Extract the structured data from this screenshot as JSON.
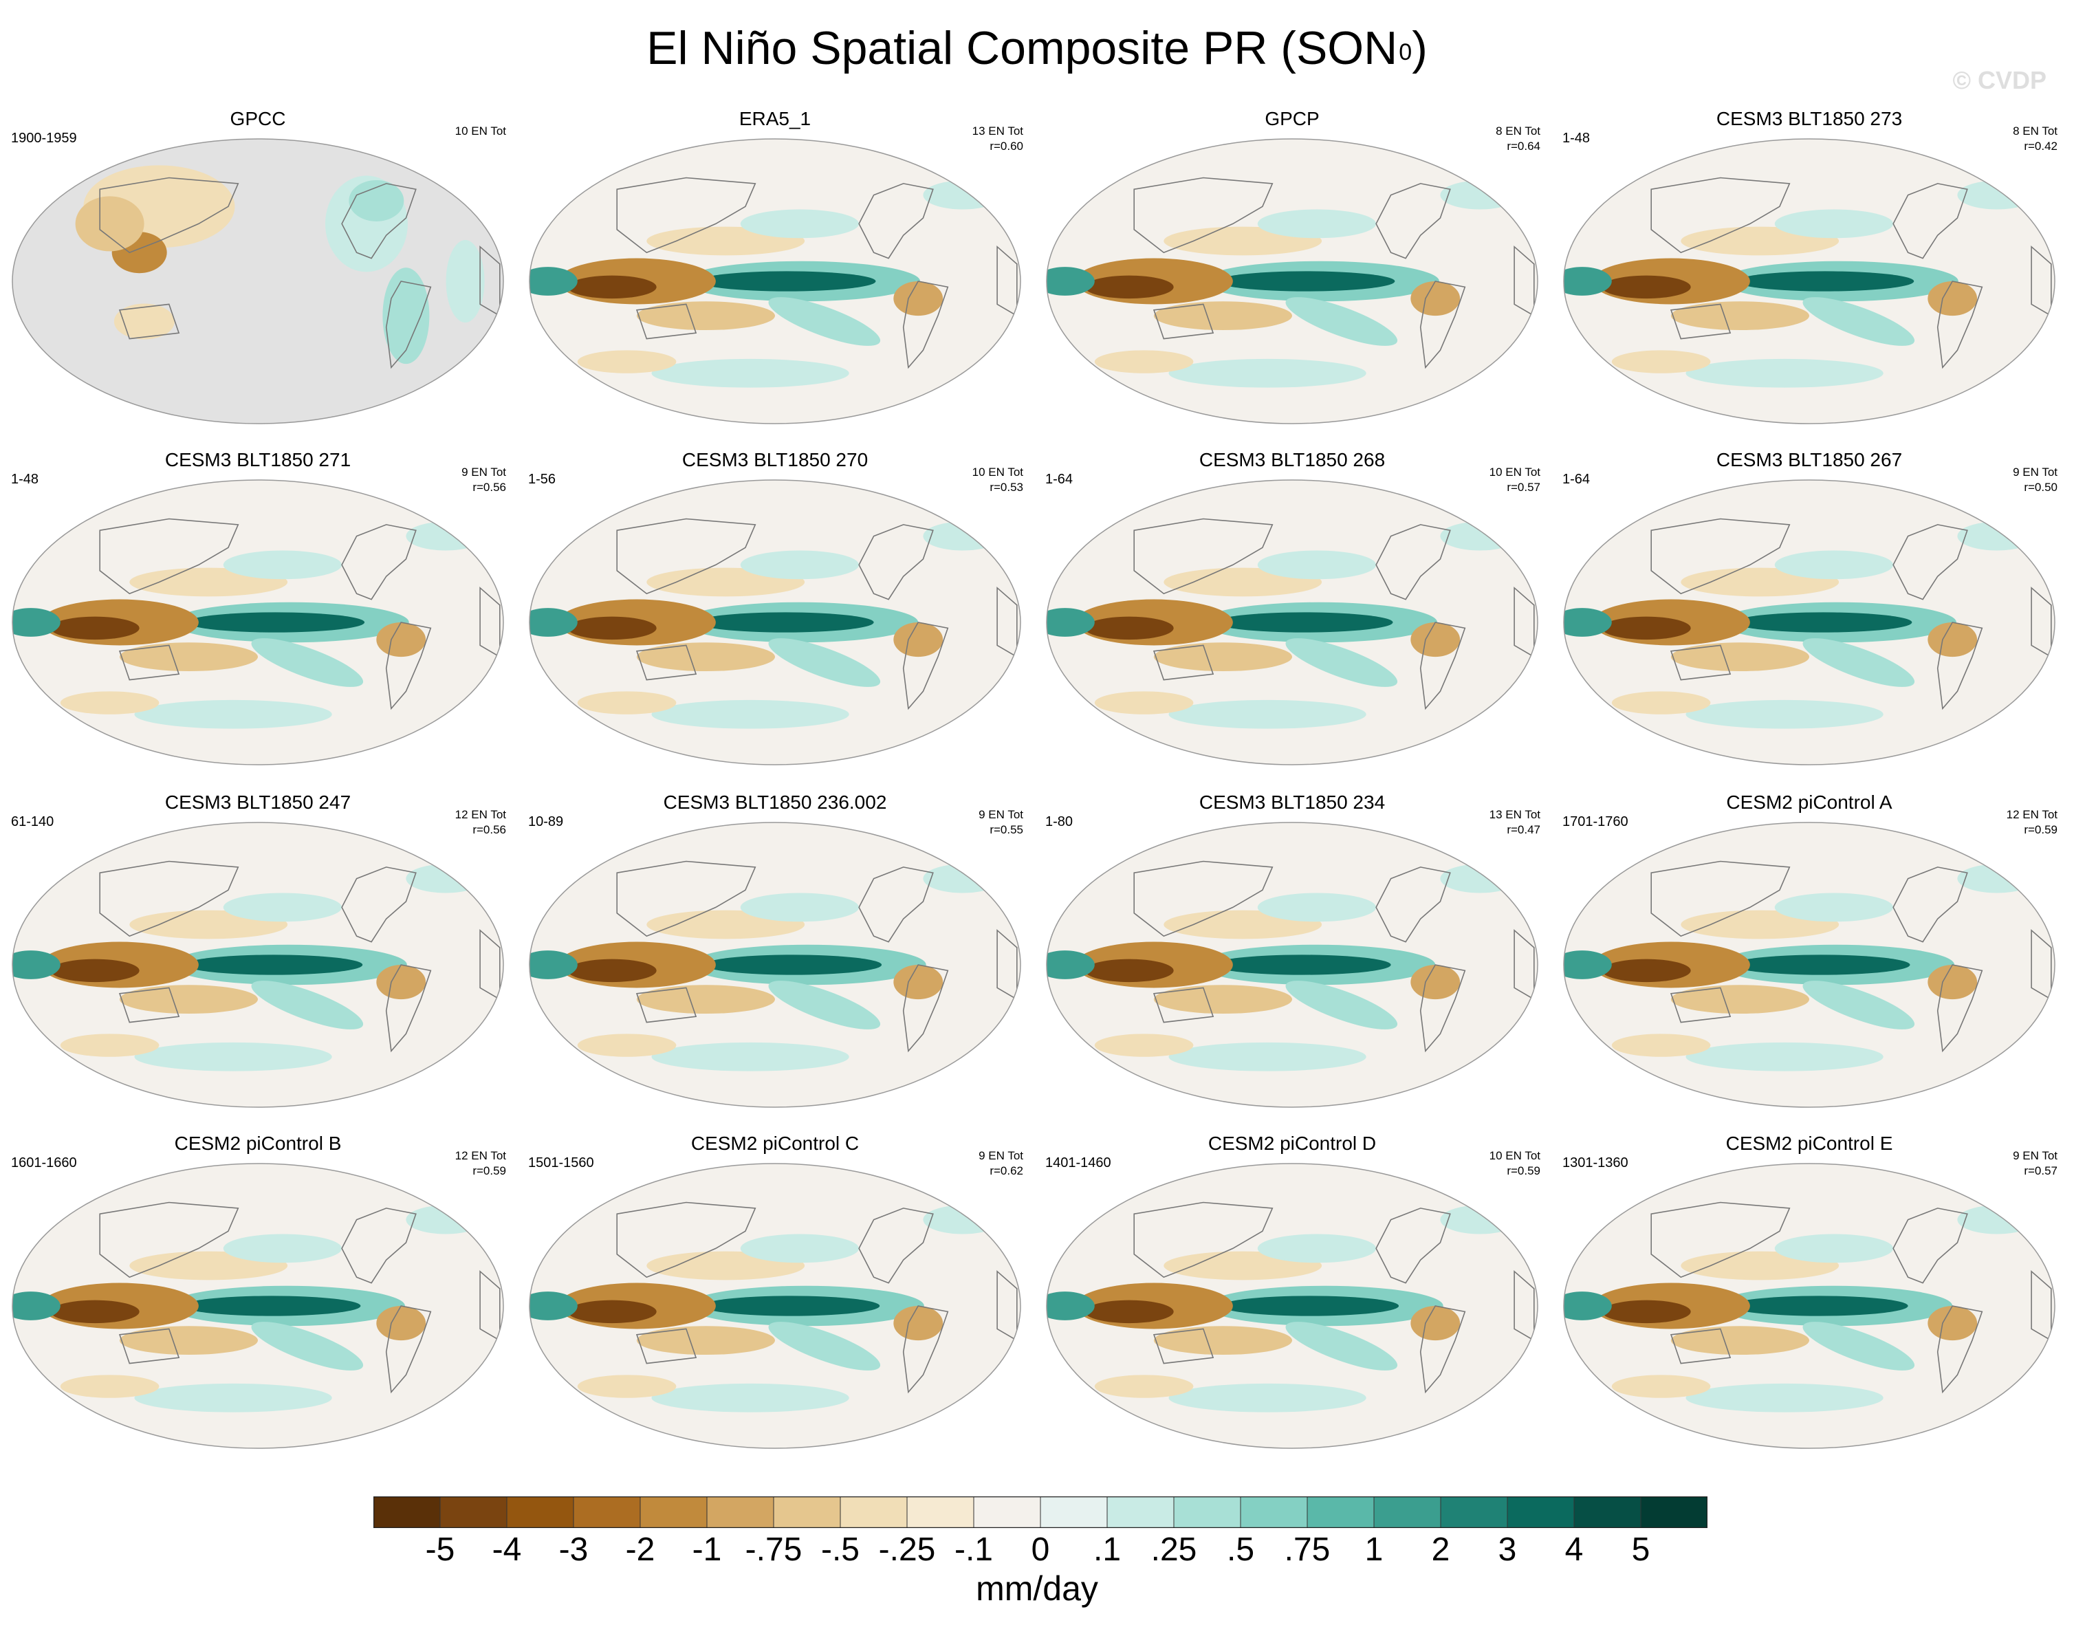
{
  "figure": {
    "title_main": "El Niño Spatial Composite PR (SON",
    "title_sup": "0",
    "title_close": ")",
    "watermark": "© CVDP"
  },
  "chart_data": {
    "type": "heatmap",
    "subtype": "global map panels",
    "variable": "PR",
    "season": "SON0",
    "units": "mm/day",
    "colorbar": {
      "levels": [
        "-5",
        "-4",
        "-3",
        "-2",
        "-1",
        "-.75",
        "-.5",
        "-.25",
        "-.1",
        "0",
        ".1",
        ".25",
        ".5",
        ".75",
        "1",
        "2",
        "3",
        "4",
        "5"
      ],
      "colors": [
        "#5a3008",
        "#7a4410",
        "#94560f",
        "#ac6d22",
        "#c18a3c",
        "#d3a662",
        "#e5c68e",
        "#f1deb7",
        "#f6ead2",
        "#f4f1ec",
        "#e7f2f0",
        "#c9ebe5",
        "#a8e0d6",
        "#84d0c3",
        "#5ab8a9",
        "#3b9e8f",
        "#1f8275",
        "#0b6a5e",
        "#064f45",
        "#033c33"
      ],
      "label": "mm/day"
    },
    "panels": [
      {
        "name": "GPCC",
        "period": "1900-1959",
        "events": "10 EN Tot",
        "r": "",
        "missing_ocean": true
      },
      {
        "name": "ERA5_1",
        "period": "",
        "events": "13 EN Tot",
        "r": "r=0.60"
      },
      {
        "name": "GPCP",
        "period": "",
        "events": "8 EN Tot",
        "r": "r=0.64"
      },
      {
        "name": "CESM3 BLT1850 273",
        "period": "1-48",
        "events": "8 EN Tot",
        "r": "r=0.42"
      },
      {
        "name": "CESM3 BLT1850 271",
        "period": "1-48",
        "events": "9 EN Tot",
        "r": "r=0.56"
      },
      {
        "name": "CESM3 BLT1850 270",
        "period": "1-56",
        "events": "10 EN Tot",
        "r": "r=0.53"
      },
      {
        "name": "CESM3 BLT1850 268",
        "period": "1-64",
        "events": "10 EN Tot",
        "r": "r=0.57"
      },
      {
        "name": "CESM3 BLT1850 267",
        "period": "1-64",
        "events": "9 EN Tot",
        "r": "r=0.50"
      },
      {
        "name": "CESM3 BLT1850 247",
        "period": "61-140",
        "events": "12 EN Tot",
        "r": "r=0.56"
      },
      {
        "name": "CESM3 BLT1850 236.002",
        "period": "10-89",
        "events": "9 EN Tot",
        "r": "r=0.55"
      },
      {
        "name": "CESM3 BLT1850 234",
        "period": "1-80",
        "events": "13 EN Tot",
        "r": "r=0.47"
      },
      {
        "name": "CESM2 piControl A",
        "period": "1701-1760",
        "events": "12 EN Tot",
        "r": "r=0.59"
      },
      {
        "name": "CESM2 piControl B",
        "period": "1601-1660",
        "events": "12 EN Tot",
        "r": "r=0.59"
      },
      {
        "name": "CESM2 piControl C",
        "period": "1501-1560",
        "events": "9 EN Tot",
        "r": "r=0.62"
      },
      {
        "name": "CESM2 piControl D",
        "period": "1401-1460",
        "events": "10 EN Tot",
        "r": "r=0.59"
      },
      {
        "name": "CESM2 piControl E",
        "period": "1301-1360",
        "events": "9 EN Tot",
        "r": "r=0.57"
      }
    ]
  }
}
